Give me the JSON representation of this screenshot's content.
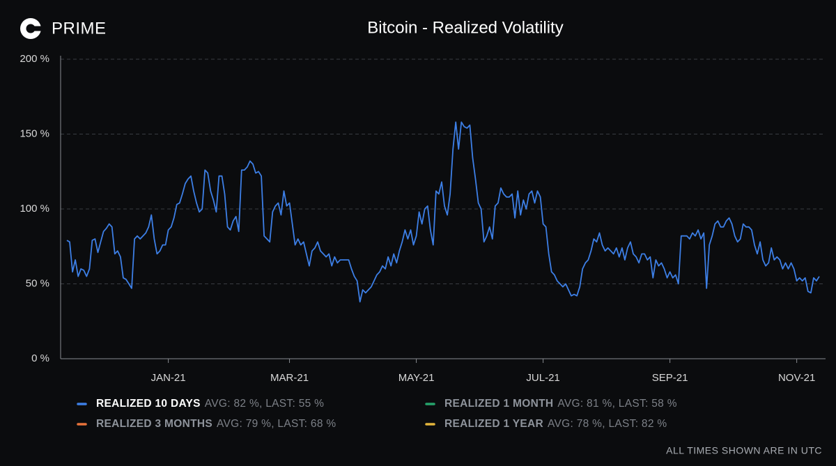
{
  "brand": "PRIME",
  "footer": "ALL TIMES SHOWN ARE IN UTC",
  "chart_data": {
    "type": "line",
    "title": "Bitcoin - Realized Volatility",
    "ylim": [
      0,
      200
    ],
    "yticks": [
      {
        "value": 0,
        "label": "0 %"
      },
      {
        "value": 50,
        "label": "50 %"
      },
      {
        "value": 100,
        "label": "100 %"
      },
      {
        "value": 150,
        "label": "150 %"
      },
      {
        "value": 200,
        "label": "200 %"
      }
    ],
    "grid": true,
    "xticks": [
      {
        "value": 36,
        "label": "JAN-21"
      },
      {
        "value": 79,
        "label": "MAR-21"
      },
      {
        "value": 124,
        "label": "MAY-21"
      },
      {
        "value": 169,
        "label": "JUL-21"
      },
      {
        "value": 214,
        "label": "SEP-21"
      },
      {
        "value": 259,
        "label": "NOV-21"
      }
    ],
    "series": [
      {
        "name": "REALIZED 10 DAYS",
        "stats": "AVG: 82 %, LAST: 55 %",
        "color": "#3d7fe6",
        "visible": true,
        "values": [
          79,
          78,
          58,
          66,
          55,
          60,
          59,
          55,
          60,
          79,
          80,
          71,
          78,
          85,
          87,
          90,
          88,
          70,
          72,
          68,
          54,
          53,
          50,
          47,
          80,
          82,
          80,
          82,
          84,
          88,
          96,
          80,
          70,
          72,
          76,
          76,
          86,
          88,
          94,
          103,
          104,
          110,
          117,
          120,
          122,
          112,
          104,
          98,
          100,
          126,
          124,
          112,
          106,
          98,
          122,
          122,
          110,
          88,
          86,
          92,
          95,
          85,
          126,
          126,
          128,
          132,
          130,
          124,
          125,
          122,
          82,
          80,
          78,
          98,
          102,
          104,
          96,
          112,
          102,
          104,
          90,
          76,
          80,
          76,
          78,
          70,
          62,
          72,
          74,
          78,
          72,
          70,
          68,
          70,
          62,
          68,
          64,
          66,
          66,
          66,
          66,
          60,
          55,
          52,
          38,
          46,
          44,
          46,
          48,
          52,
          56,
          58,
          62,
          60,
          68,
          62,
          70,
          64,
          72,
          78,
          86,
          80,
          86,
          76,
          82,
          98,
          90,
          100,
          102,
          86,
          76,
          112,
          110,
          118,
          102,
          96,
          110,
          140,
          158,
          140,
          158,
          155,
          154,
          156,
          134,
          120,
          104,
          100,
          78,
          82,
          88,
          80,
          102,
          104,
          114,
          110,
          108,
          108,
          110,
          94,
          112,
          96,
          106,
          100,
          110,
          112,
          104,
          112,
          108,
          90,
          88,
          70,
          58,
          56,
          52,
          50,
          48,
          50,
          46,
          42,
          43,
          42,
          48,
          60,
          64,
          66,
          72,
          80,
          78,
          84,
          76,
          72,
          74,
          72,
          70,
          74,
          68,
          74,
          66,
          74,
          78,
          70,
          68,
          64,
          70,
          70,
          66,
          68,
          54,
          66,
          62,
          64,
          60,
          54,
          58,
          54,
          56,
          50,
          82,
          82,
          82,
          80,
          84,
          82,
          86,
          80,
          84,
          47,
          76,
          82,
          90,
          92,
          88,
          88,
          92,
          94,
          90,
          82,
          78,
          80,
          90,
          88,
          88,
          86,
          76,
          70,
          78,
          66,
          62,
          64,
          74,
          66,
          68,
          66,
          60,
          64,
          60,
          64,
          60,
          52,
          54,
          52,
          54,
          45,
          44,
          54,
          52,
          55
        ]
      },
      {
        "name": "REALIZED 1 MONTH",
        "stats": "AVG: 81 %, LAST: 58 %",
        "color": "#26a36b",
        "visible": false
      },
      {
        "name": "REALIZED 3 MONTHS",
        "stats": "AVG: 79 %, LAST: 68 %",
        "color": "#e8733a",
        "visible": false
      },
      {
        "name": "REALIZED 1 YEAR",
        "stats": "AVG: 78 %, LAST: 82 %",
        "color": "#e3b53b",
        "visible": false
      }
    ]
  }
}
